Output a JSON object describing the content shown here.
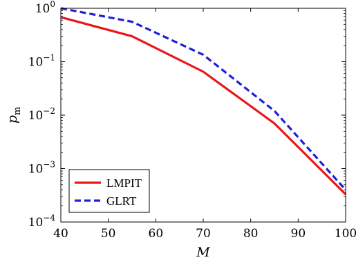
{
  "chart_data": {
    "type": "line",
    "title": "",
    "xlabel": "M",
    "ylabel": "p",
    "ylabel_subscript": "m",
    "xlim": [
      40,
      100
    ],
    "ylim": [
      0.0001,
      1
    ],
    "yscale": "log",
    "grid": false,
    "legend": "bottom-left",
    "x_ticks": [
      40,
      50,
      60,
      70,
      80,
      90,
      100
    ],
    "y_ticks": [
      {
        "value": 1,
        "base": "10",
        "exp": "0"
      },
      {
        "value": 0.1,
        "base": "10",
        "exp": "−1"
      },
      {
        "value": 0.01,
        "base": "10",
        "exp": "−2"
      },
      {
        "value": 0.001,
        "base": "10",
        "exp": "−3"
      },
      {
        "value": 0.0001,
        "base": "10",
        "exp": "−4"
      }
    ],
    "series": [
      {
        "name": "LMPIT",
        "color": "#e8161b",
        "style": "solid",
        "x": [
          40,
          55,
          70,
          85,
          100
        ],
        "y": [
          0.68,
          0.3,
          0.065,
          0.007,
          0.00033
        ]
      },
      {
        "name": "GLRT",
        "color": "#1f1fd8",
        "style": "dashed",
        "x": [
          40,
          55,
          70,
          85,
          100
        ],
        "y": [
          1.0,
          0.56,
          0.135,
          0.012,
          0.0004
        ]
      }
    ]
  }
}
